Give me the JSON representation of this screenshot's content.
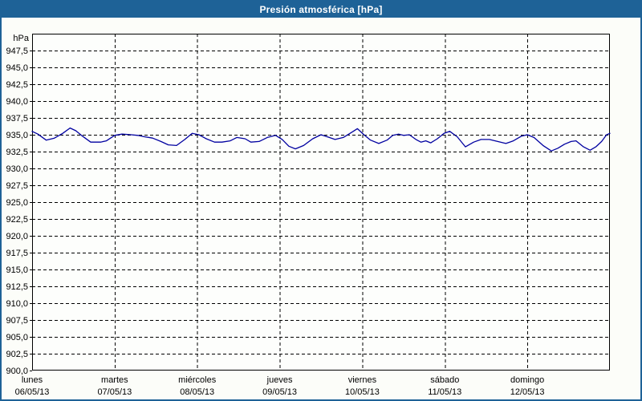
{
  "window": {
    "title": "Presión atmosférica [hPa]"
  },
  "colors": {
    "titlebar_bg": "#1e6297",
    "titlebar_text": "#ffffff",
    "frame_border": "#1e6297",
    "background": "#fcfdf9",
    "plot_background": "#fdfefc",
    "plot_border": "#000000",
    "grid": "#000000",
    "tick_text": "#000000",
    "series_line": "#0000a0"
  },
  "chart_data": {
    "type": "line",
    "title": "Presión atmosférica [hPa]",
    "ylabel": "hPa",
    "ylim": [
      900,
      950
    ],
    "ytick_step": 2.5,
    "ytick_labels": [
      "947,5",
      "945,0",
      "942,5",
      "940,0",
      "937,5",
      "935,0",
      "932,5",
      "930,0",
      "927,5",
      "925,0",
      "922,5",
      "920,0",
      "917,5",
      "915,0",
      "912,5",
      "910,0",
      "907,5",
      "905,0",
      "902,5",
      "900,0"
    ],
    "grid": "dashed",
    "legend": "none",
    "x_axis": {
      "unit": "day",
      "range_days": 7,
      "day_labels": [
        {
          "name": "lunes",
          "date": "06/05/13"
        },
        {
          "name": "martes",
          "date": "07/05/13"
        },
        {
          "name": "miércoles",
          "date": "08/05/13"
        },
        {
          "name": "jueves",
          "date": "09/05/13"
        },
        {
          "name": "viernes",
          "date": "10/05/13"
        },
        {
          "name": "sábado",
          "date": "11/05/13"
        },
        {
          "name": "domingo",
          "date": "12/05/13"
        }
      ]
    },
    "series": [
      {
        "name": "Presión atmosférica",
        "x_day": [
          0,
          0.07,
          0.17,
          0.27,
          0.37,
          0.46,
          0.53,
          0.61,
          0.71,
          0.83,
          0.9,
          1.0,
          1.09,
          1.2,
          1.28,
          1.36,
          1.46,
          1.56,
          1.65,
          1.75,
          1.85,
          1.94,
          2.02,
          2.11,
          2.21,
          2.3,
          2.4,
          2.48,
          2.58,
          2.65,
          2.75,
          2.85,
          2.95,
          3.03,
          3.11,
          3.19,
          3.29,
          3.4,
          3.5,
          3.6,
          3.67,
          3.77,
          3.89,
          3.94,
          4.02,
          4.1,
          4.2,
          4.3,
          4.37,
          4.44,
          4.5,
          4.57,
          4.65,
          4.71,
          4.77,
          4.83,
          4.91,
          4.99,
          5.06,
          5.15,
          5.25,
          5.35,
          5.44,
          5.54,
          5.64,
          5.74,
          5.83,
          5.93,
          6.0,
          6.08,
          6.19,
          6.29,
          6.37,
          6.45,
          6.53,
          6.59,
          6.68,
          6.76,
          6.83,
          6.9,
          6.96,
          7.0
        ],
        "hpa": [
          935.5,
          935.1,
          934.2,
          934.5,
          935.2,
          936.0,
          935.6,
          934.8,
          933.9,
          933.9,
          934.1,
          934.9,
          935.1,
          935.0,
          934.9,
          934.7,
          934.5,
          934.0,
          933.5,
          933.4,
          934.3,
          935.2,
          935.0,
          934.4,
          933.9,
          933.9,
          934.1,
          934.6,
          934.4,
          933.9,
          934.0,
          934.6,
          934.9,
          934.3,
          933.3,
          932.9,
          933.4,
          934.4,
          935.0,
          934.6,
          934.3,
          934.6,
          935.5,
          935.9,
          935.0,
          934.2,
          933.7,
          934.2,
          934.9,
          935.1,
          934.9,
          935.0,
          934.3,
          933.9,
          934.1,
          933.8,
          934.4,
          935.2,
          935.5,
          934.7,
          933.2,
          933.9,
          934.3,
          934.3,
          934.0,
          933.7,
          934.1,
          934.8,
          935.0,
          934.6,
          933.4,
          932.6,
          933.0,
          933.6,
          934.0,
          934.1,
          933.2,
          932.7,
          933.2,
          934.0,
          935.0,
          935.2
        ]
      }
    ]
  }
}
